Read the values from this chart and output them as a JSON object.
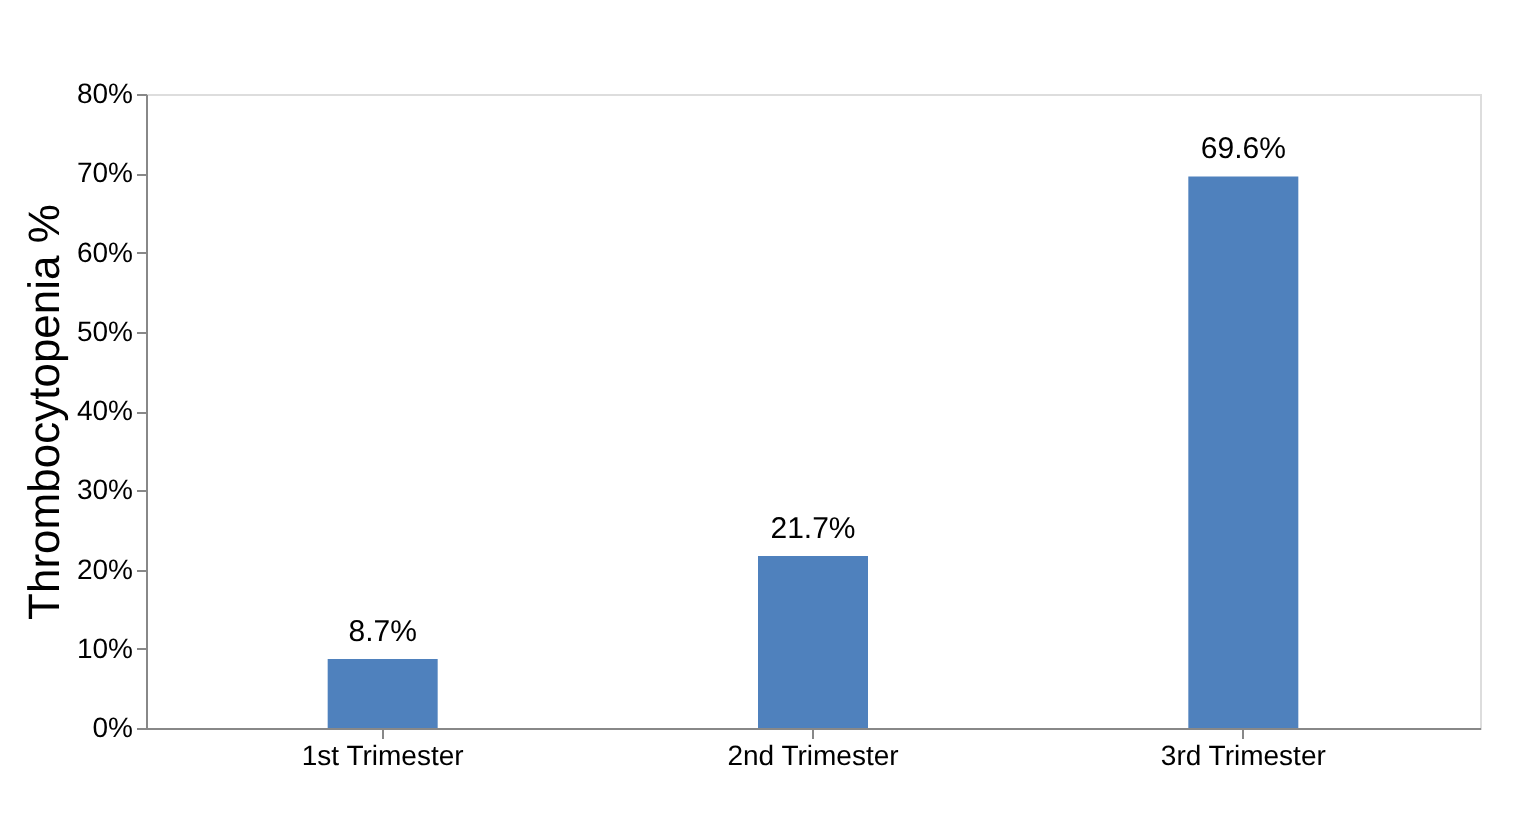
{
  "chart_data": {
    "type": "bar",
    "ylabel": "Thrombocytopenia %",
    "categories": [
      "1st Trimester",
      "2nd Trimester",
      "3rd Trimester"
    ],
    "values": [
      8.7,
      21.7,
      69.6
    ],
    "value_labels": [
      "8.7%",
      "21.7%",
      "69.6%"
    ],
    "color": "#4f81bd",
    "ylim": [
      0,
      80
    ],
    "yticks": [
      {
        "value": 0,
        "label": "0%"
      },
      {
        "value": 10,
        "label": "10%"
      },
      {
        "value": 20,
        "label": "20%"
      },
      {
        "value": 30,
        "label": "30%"
      },
      {
        "value": 40,
        "label": "40%"
      },
      {
        "value": 50,
        "label": "50%"
      },
      {
        "value": 60,
        "label": "60%"
      },
      {
        "value": 70,
        "label": "70%"
      },
      {
        "value": 80,
        "label": "80%"
      }
    ],
    "grid": false
  }
}
